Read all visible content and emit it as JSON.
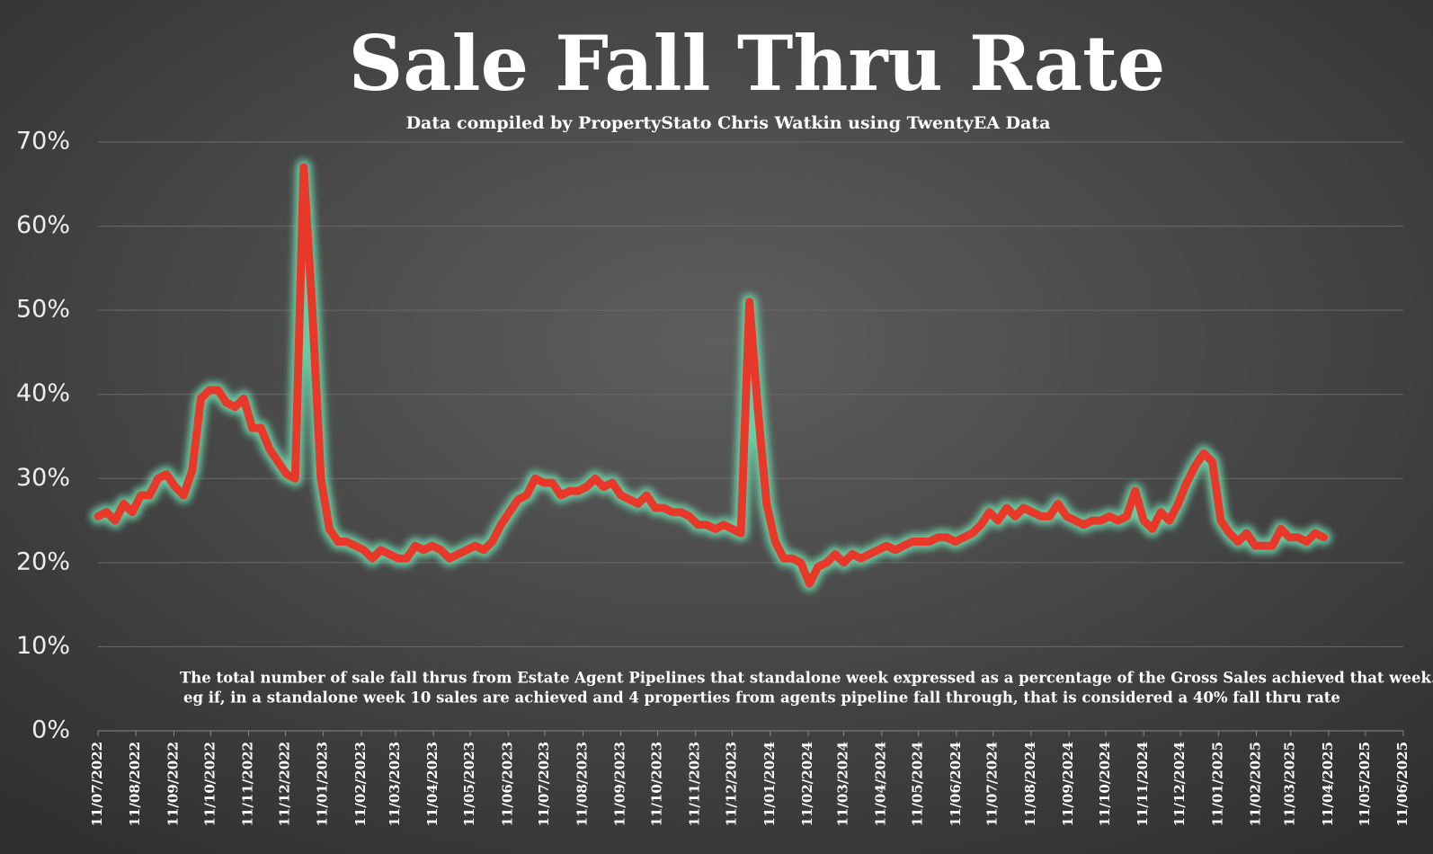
{
  "chart_data": {
    "type": "line",
    "title": "Sale Fall Thru Rate",
    "subtitle": "Data compiled by PropertyStato Chris Watkin using TwentyEA Data",
    "annotations": [
      "The total number of sale fall thrus from Estate Agent Pipelines that standalone week expressed as a percentage of the Gross Sales achieved that week.",
      "eg if, in a standalone week 10 sales are achieved and 4 properties from agents pipeline fall through, that is considered a 40%  fall thru rate"
    ],
    "x": [
      "11/07/2022",
      "18/07/2022",
      "25/07/2022",
      "01/08/2022",
      "08/08/2022",
      "15/08/2022",
      "22/08/2022",
      "29/08/2022",
      "05/09/2022",
      "12/09/2022",
      "19/09/2022",
      "26/09/2022",
      "03/10/2022",
      "10/10/2022",
      "17/10/2022",
      "24/10/2022",
      "31/10/2022",
      "07/11/2022",
      "14/11/2022",
      "21/11/2022",
      "28/11/2022",
      "05/12/2022",
      "12/12/2022",
      "19/12/2022",
      "26/12/2022",
      "02/01/2023",
      "09/01/2023",
      "16/01/2023",
      "23/01/2023",
      "30/01/2023",
      "06/02/2023",
      "13/02/2023",
      "20/02/2023",
      "27/02/2023",
      "06/03/2023",
      "13/03/2023",
      "20/03/2023",
      "27/03/2023",
      "03/04/2023",
      "10/04/2023",
      "17/04/2023",
      "24/04/2023",
      "01/05/2023",
      "08/05/2023",
      "15/05/2023",
      "22/05/2023",
      "29/05/2023",
      "05/06/2023",
      "12/06/2023",
      "19/06/2023",
      "26/06/2023",
      "03/07/2023",
      "10/07/2023",
      "17/07/2023",
      "24/07/2023",
      "31/07/2023",
      "07/08/2023",
      "14/08/2023",
      "21/08/2023",
      "28/08/2023",
      "04/09/2023",
      "11/09/2023",
      "18/09/2023",
      "25/09/2023",
      "02/10/2023",
      "09/10/2023",
      "16/10/2023",
      "23/10/2023",
      "30/10/2023",
      "06/11/2023",
      "13/11/2023",
      "20/11/2023",
      "27/11/2023",
      "04/12/2023",
      "11/12/2023",
      "18/12/2023",
      "25/12/2023",
      "01/01/2024",
      "08/01/2024",
      "15/01/2024",
      "22/01/2024",
      "29/01/2024",
      "05/02/2024",
      "12/02/2024",
      "19/02/2024",
      "26/02/2024",
      "04/03/2024",
      "11/03/2024",
      "18/03/2024",
      "25/03/2024",
      "01/04/2024",
      "08/04/2024",
      "15/04/2024",
      "22/04/2024",
      "29/04/2024",
      "06/05/2024",
      "13/05/2024",
      "20/05/2024",
      "27/05/2024",
      "03/06/2024",
      "10/06/2024",
      "17/06/2024",
      "24/06/2024",
      "01/07/2024",
      "08/07/2024",
      "15/07/2024",
      "22/07/2024",
      "29/07/2024",
      "05/08/2024",
      "12/08/2024",
      "19/08/2024",
      "26/08/2024",
      "02/09/2024",
      "09/09/2024",
      "16/09/2024",
      "23/09/2024",
      "30/09/2024",
      "07/10/2024",
      "14/10/2024",
      "21/10/2024",
      "28/10/2024",
      "04/11/2024",
      "11/11/2024",
      "18/11/2024",
      "25/11/2024",
      "02/12/2024",
      "09/12/2024",
      "16/12/2024",
      "23/12/2024",
      "30/12/2024",
      "06/01/2025",
      "13/01/2025",
      "20/01/2025",
      "27/01/2025",
      "03/02/2025",
      "10/02/2025",
      "17/02/2025",
      "24/02/2025",
      "03/03/2025",
      "10/03/2025",
      "17/03/2025",
      "24/03/2025",
      "31/03/2025",
      "07/04/2025"
    ],
    "series": [
      {
        "color": "#e8382a",
        "glow": "#6fe0b0",
        "values": [
          25.5,
          26,
          25,
          27,
          26,
          28,
          28,
          30,
          30.5,
          29,
          28,
          31,
          39.5,
          40.5,
          40.5,
          39,
          38.5,
          39.5,
          36,
          36,
          33.5,
          32,
          30.5,
          30,
          67,
          50,
          30,
          24,
          22.5,
          22.5,
          22,
          21.5,
          20.5,
          21.5,
          21,
          20.5,
          20.5,
          22,
          21.5,
          22,
          21.5,
          20.5,
          21,
          21.5,
          22,
          21.5,
          22.5,
          24.5,
          26,
          27.5,
          28,
          30,
          29.5,
          29.5,
          28,
          28.5,
          28.5,
          29,
          30,
          29,
          29.5,
          28,
          27.5,
          27,
          28,
          26.5,
          26.5,
          26,
          26,
          25.5,
          24.5,
          24.5,
          24,
          24.5,
          24,
          23.5,
          51,
          38,
          27,
          22.5,
          20.5,
          20.5,
          20,
          17.5,
          19.5,
          20,
          21,
          20,
          21,
          20.5,
          21,
          21.5,
          22,
          21.5,
          22,
          22.5,
          22.5,
          22.5,
          23,
          23,
          22.5,
          23,
          23.5,
          24.5,
          26,
          25,
          26.5,
          25.5,
          26.5,
          26,
          25.5,
          25.5,
          27,
          25.5,
          25,
          24.5,
          25,
          25,
          25.5,
          25,
          25.5,
          28.5,
          25,
          24,
          26,
          25,
          27,
          29.5,
          31.5,
          33,
          32,
          25,
          23.5,
          22.5,
          23.5,
          22,
          22,
          22,
          24,
          23,
          23,
          22.5,
          23.5,
          23
        ]
      }
    ],
    "xlim": [
      "11/07/2022",
      "11/06/2025"
    ],
    "xticks": [
      "11/07/2022",
      "11/08/2022",
      "11/09/2022",
      "11/10/2022",
      "11/11/2022",
      "11/12/2022",
      "11/01/2023",
      "11/02/2023",
      "11/03/2023",
      "11/04/2023",
      "11/05/2023",
      "11/06/2023",
      "11/07/2023",
      "11/08/2023",
      "11/09/2023",
      "11/10/2023",
      "11/11/2023",
      "11/12/2023",
      "11/01/2024",
      "11/02/2024",
      "11/03/2024",
      "11/04/2024",
      "11/05/2024",
      "11/06/2024",
      "11/07/2024",
      "11/08/2024",
      "11/09/2024",
      "11/10/2024",
      "11/11/2024",
      "11/12/2024",
      "11/01/2025",
      "11/02/2025",
      "11/03/2025",
      "11/04/2025",
      "11/05/2025",
      "11/06/2025"
    ],
    "ylim": [
      0,
      70
    ],
    "yticks": [
      {
        "value": 0,
        "label": "0%"
      },
      {
        "value": 10,
        "label": "10%"
      },
      {
        "value": 20,
        "label": "20%"
      },
      {
        "value": 30,
        "label": "30%"
      },
      {
        "value": 40,
        "label": "40%"
      },
      {
        "value": 50,
        "label": "50%"
      },
      {
        "value": 60,
        "label": "60%"
      },
      {
        "value": 70,
        "label": "70%"
      }
    ],
    "grid": true
  }
}
